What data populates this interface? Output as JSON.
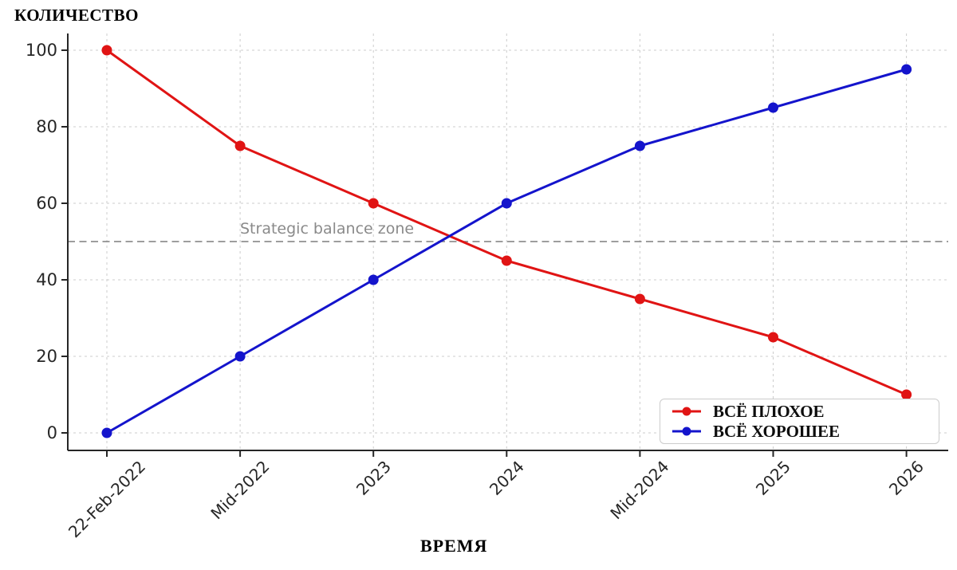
{
  "chart_data": {
    "type": "line",
    "title": "КОЛИЧЕСТВО",
    "ylabel": "КОЛИЧЕСТВО",
    "xlabel": "ВРЕМЯ",
    "categories": [
      "22-Feb-2022",
      "Mid-2022",
      "2023",
      "2024",
      "Mid-2024",
      "2025",
      "2026"
    ],
    "series": [
      {
        "name": "ВСЁ ПЛОХОЕ",
        "color": "#e01414",
        "values": [
          100,
          75,
          60,
          45,
          35,
          25,
          10
        ]
      },
      {
        "name": "ВСЁ ХОРОШЕЕ",
        "color": "#1414cc",
        "values": [
          0,
          20,
          40,
          60,
          75,
          85,
          95
        ]
      }
    ],
    "y_ticks": [
      0,
      20,
      40,
      60,
      80,
      100
    ],
    "ylim": [
      0,
      100
    ],
    "grid": true,
    "legend_position": "lower right",
    "reference_line": {
      "value": 50,
      "label": "Strategic balance zone",
      "line_color": "#7f7f7f",
      "label_color": "#8a8a8a",
      "style": "dashed"
    },
    "colors": {
      "axis": "#262626",
      "grid": "#cccccc",
      "tick_text": "#262626",
      "background": "#ffffff"
    }
  }
}
